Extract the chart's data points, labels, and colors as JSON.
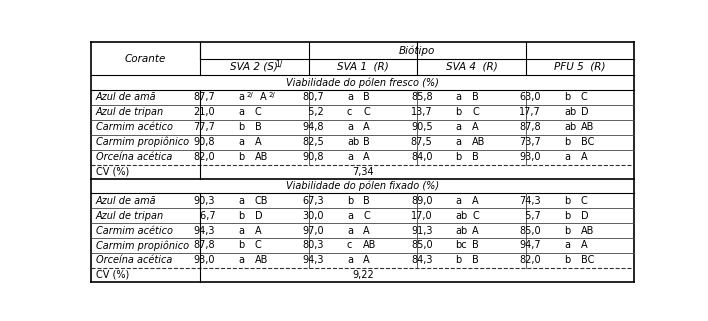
{
  "title_row": "Biótipo",
  "col_header1": "Corante",
  "col_header2": "SVA 2 (S)",
  "col_header2_sup": "1/",
  "col_header3": "SVA 1  (R)",
  "col_header4": "SVA 4  (R)",
  "col_header5": "PFU 5  (R)",
  "section1_header": "Viabilidade do pólen fresco (%)",
  "section2_header": "Viabilidade do pólen fixado (%)",
  "fresh_rows": [
    [
      "Azul de amã",
      "87,7",
      "a",
      "2/",
      "A",
      "2/",
      "80,7",
      "a",
      "",
      "B",
      "",
      "85,8",
      "a",
      "",
      "B",
      "",
      "63,0",
      "b",
      "",
      "C",
      ""
    ],
    [
      "Azul de tripan",
      "21,0",
      "a",
      "",
      "C",
      "",
      " 5,2",
      "c",
      "",
      "C",
      "",
      "13,7",
      "b",
      "",
      "C",
      "",
      "17,7",
      "ab",
      "",
      "D",
      ""
    ],
    [
      "Carmim acético",
      "77,7",
      "b",
      "",
      "B",
      "",
      "94,8",
      "a",
      "",
      "A",
      "",
      "90,5",
      "a",
      "",
      "A",
      "",
      "87,8",
      "ab",
      "",
      "AB",
      ""
    ],
    [
      "Carmim propiônico",
      "90,8",
      "a",
      "",
      "A",
      "",
      "82,5",
      "ab",
      "",
      "B",
      "",
      "87,5",
      "a",
      "",
      "AB",
      "",
      "73,7",
      "b",
      "",
      "BC",
      ""
    ],
    [
      "Orceína acética",
      "82,0",
      "b",
      "",
      "AB",
      "",
      "90,8",
      "a",
      "",
      "A",
      "",
      "84,0",
      "b",
      "",
      "B",
      "",
      "93,0",
      "a",
      "",
      "A",
      ""
    ]
  ],
  "cv1": "7,34",
  "fixed_rows": [
    [
      "Azul de amã",
      "90,3",
      "a",
      "",
      "CB",
      "",
      "67,3",
      "b",
      "",
      "B",
      "",
      "89,0",
      "a",
      "",
      "A",
      "",
      "74,3",
      "b",
      "",
      "C",
      ""
    ],
    [
      "Azul de tripan",
      " 6,7",
      "b",
      "",
      "D",
      "",
      "30,0",
      "a",
      "",
      "C",
      "",
      "17,0",
      "ab",
      "",
      "C",
      "",
      " 5,7",
      "b",
      "",
      "D",
      ""
    ],
    [
      "Carmim acético",
      "94,3",
      "a",
      "",
      "A",
      "",
      "97,0",
      "a",
      "",
      "A",
      "",
      "91,3",
      "ab",
      "",
      "A",
      "",
      "85,0",
      "b",
      "",
      "AB",
      ""
    ],
    [
      "Carmim propiônico",
      "87,8",
      "b",
      "",
      "C",
      "",
      "80,3",
      "c",
      "",
      "AB",
      "",
      "85,0",
      "bc",
      "",
      "B",
      "",
      "94,7",
      "a",
      "",
      "A",
      ""
    ],
    [
      "Orceína acética",
      "93,0",
      "a",
      "",
      "AB",
      "",
      "94,3",
      "a",
      "",
      "A",
      "",
      "84,3",
      "b",
      "",
      "B",
      "",
      "82,0",
      "b",
      "",
      "BC",
      ""
    ]
  ],
  "cv2": "9,22",
  "bg_color": "#ffffff",
  "text_color": "#000000",
  "font_size": 7.0,
  "header_font_size": 7.5
}
